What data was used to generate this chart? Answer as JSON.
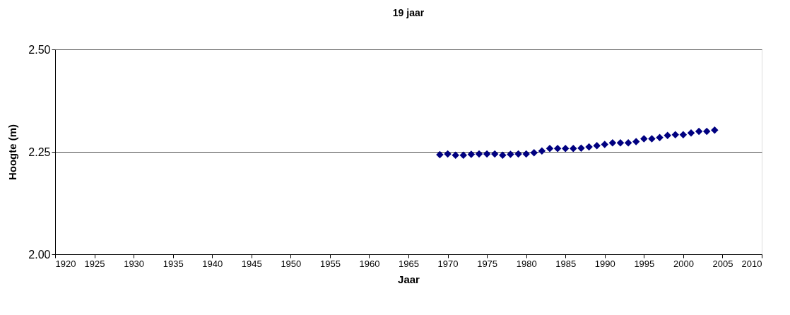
{
  "chart_data": {
    "type": "scatter",
    "title": "19 jaar",
    "xlabel": "Jaar",
    "ylabel": "Hoogte (m)",
    "x": [
      1969,
      1970,
      1971,
      1972,
      1973,
      1974,
      1975,
      1976,
      1977,
      1978,
      1979,
      1980,
      1981,
      1982,
      1983,
      1984,
      1985,
      1986,
      1987,
      1988,
      1989,
      1990,
      1991,
      1992,
      1993,
      1994,
      1995,
      1996,
      1997,
      1998,
      1999,
      2000,
      2001,
      2002,
      2003,
      2004
    ],
    "series": [
      {
        "color": "#000080",
        "values": [
          2.243,
          2.245,
          2.242,
          2.242,
          2.244,
          2.245,
          2.245,
          2.245,
          2.242,
          2.244,
          2.245,
          2.245,
          2.248,
          2.252,
          2.258,
          2.258,
          2.258,
          2.258,
          2.259,
          2.262,
          2.265,
          2.268,
          2.272,
          2.272,
          2.272,
          2.275,
          2.282,
          2.282,
          2.285,
          2.29,
          2.292,
          2.292,
          2.296,
          2.3,
          2.3,
          2.303
        ]
      }
    ],
    "xlim": [
      1920,
      2010
    ],
    "xticks": [
      1920,
      1925,
      1930,
      1935,
      1940,
      1945,
      1950,
      1955,
      1960,
      1965,
      1970,
      1975,
      1980,
      1985,
      1990,
      1995,
      2000,
      2005,
      2010
    ],
    "ylim": [
      2.0,
      2.5
    ],
    "yticks": [
      {
        "value": 2.0,
        "label": "2.00"
      },
      {
        "value": 2.25,
        "label": "2.25"
      },
      {
        "value": 2.5,
        "label": "2.50"
      }
    ],
    "grid": "y",
    "marker": "diamond",
    "legend": false
  }
}
